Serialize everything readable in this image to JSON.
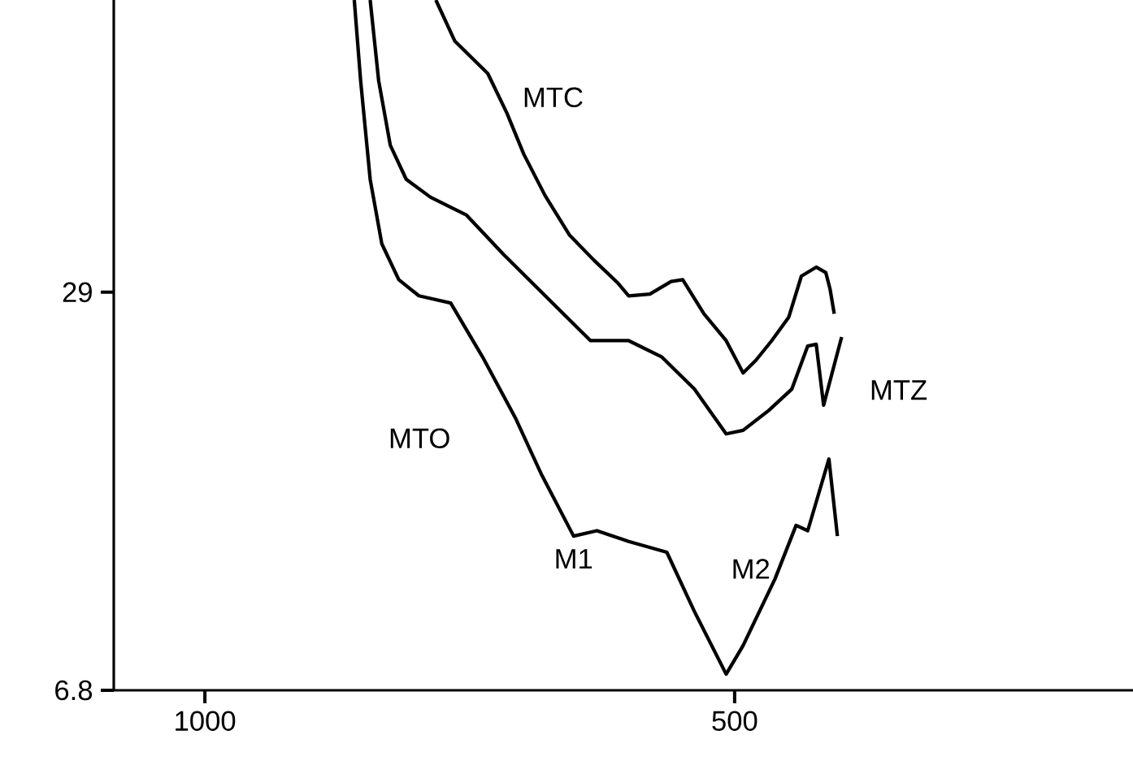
{
  "chart_data": {
    "type": "line",
    "xlim": [
      1086,
      124
    ],
    "ylim": [
      6.8,
      45.3
    ],
    "xticks": [
      1000,
      500
    ],
    "yticks": [
      29,
      6.8
    ],
    "grid": false,
    "legend": false,
    "marker": "none",
    "line_style": "solid",
    "annotations": [
      {
        "text": "M1",
        "x": 652,
        "y": 15.1
      },
      "M2"
    ],
    "series": [
      {
        "name": "MTC",
        "color": "#000000",
        "x": [
          782,
          764,
          733,
          715,
          699,
          679,
          656,
          633,
          610,
          600,
          580,
          560,
          549,
          529,
          508,
          492,
          480,
          465,
          449,
          437,
          423,
          414,
          410,
          406
        ],
        "values": [
          45.3,
          43.0,
          41.2,
          39.0,
          36.7,
          34.4,
          32.2,
          30.8,
          29.5,
          28.8,
          28.9,
          29.6,
          29.7,
          27.8,
          26.3,
          24.5,
          25.2,
          26.3,
          27.6,
          29.9,
          30.4,
          30.1,
          29.2,
          27.8
        ]
      },
      {
        "name": "MTZ",
        "color": "#000000",
        "x": [
          844,
          836,
          825,
          810,
          787,
          753,
          718,
          672,
          636,
          600,
          569,
          538,
          508,
          492,
          468,
          446,
          431,
          423,
          416,
          408,
          399
        ],
        "values": [
          45.3,
          40.8,
          37.2,
          35.3,
          34.3,
          33.3,
          31.1,
          28.4,
          26.3,
          26.3,
          25.4,
          23.6,
          21.1,
          21.3,
          22.4,
          23.6,
          26.0,
          26.1,
          22.7,
          24.5,
          26.5
        ]
      },
      {
        "name": "MTO",
        "color": "#000000",
        "x": [
          859,
          853,
          844,
          833,
          817,
          798,
          768,
          738,
          707,
          682,
          652,
          630,
          600,
          564,
          538,
          508,
          492,
          462,
          442,
          431,
          411,
          403
        ],
        "values": [
          45.3,
          40.8,
          35.3,
          31.7,
          29.7,
          28.8,
          28.4,
          25.4,
          22.0,
          18.8,
          15.4,
          15.7,
          15.1,
          14.5,
          11.2,
          7.7,
          9.3,
          13.0,
          16.0,
          15.7,
          19.7,
          15.4
        ]
      }
    ]
  }
}
